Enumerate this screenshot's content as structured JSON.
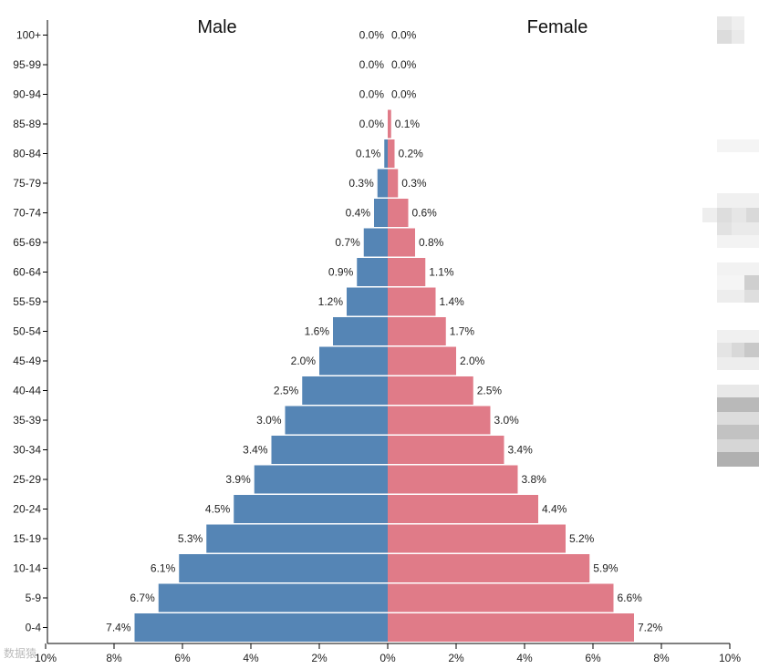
{
  "chart_data": {
    "type": "bar",
    "orientation": "horizontal-pyramid",
    "left_title": "Male",
    "right_title": "Female",
    "categories": [
      "100+",
      "95-99",
      "90-94",
      "85-89",
      "80-84",
      "75-79",
      "70-74",
      "65-69",
      "60-64",
      "55-59",
      "50-54",
      "45-49",
      "40-44",
      "35-39",
      "30-34",
      "25-29",
      "20-24",
      "15-19",
      "10-14",
      "5-9",
      "0-4"
    ],
    "series": [
      {
        "name": "Male",
        "color": "#5585b5",
        "values": [
          0.0,
          0.0,
          0.0,
          0.0,
          0.1,
          0.3,
          0.4,
          0.7,
          0.9,
          1.2,
          1.6,
          2.0,
          2.5,
          3.0,
          3.4,
          3.9,
          4.5,
          5.3,
          6.1,
          6.7,
          7.4
        ],
        "labels": [
          "0.0%",
          "0.0%",
          "0.0%",
          "0.0%",
          "0.1%",
          "0.3%",
          "0.4%",
          "0.7%",
          "0.9%",
          "1.2%",
          "1.6%",
          "2.0%",
          "2.5%",
          "3.0%",
          "3.4%",
          "3.9%",
          "4.5%",
          "5.3%",
          "6.1%",
          "6.7%",
          "7.4%"
        ]
      },
      {
        "name": "Female",
        "color": "#e07b88",
        "values": [
          0.0,
          0.0,
          0.0,
          0.1,
          0.2,
          0.3,
          0.6,
          0.8,
          1.1,
          1.4,
          1.7,
          2.0,
          2.5,
          3.0,
          3.4,
          3.8,
          4.4,
          5.2,
          5.9,
          6.6,
          7.2
        ],
        "labels": [
          "0.0%",
          "0.0%",
          "0.0%",
          "0.1%",
          "0.2%",
          "0.3%",
          "0.6%",
          "0.8%",
          "1.1%",
          "1.4%",
          "1.7%",
          "2.0%",
          "2.5%",
          "3.0%",
          "3.4%",
          "3.8%",
          "4.4%",
          "5.2%",
          "5.9%",
          "6.6%",
          "7.2%"
        ]
      }
    ],
    "x_ticks": [
      "10%",
      "8%",
      "6%",
      "4%",
      "2%",
      "0%",
      "2%",
      "4%",
      "6%",
      "8%",
      "10%"
    ],
    "x_range": [
      -10,
      10
    ],
    "xlabel": "",
    "ylabel": ""
  },
  "watermark": "数据猿"
}
